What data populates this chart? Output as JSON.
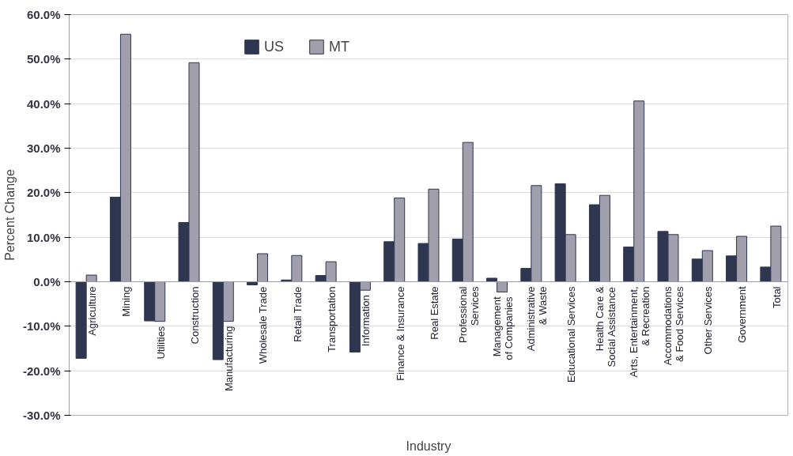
{
  "chart_data": {
    "type": "bar",
    "xlabel": "Industry",
    "ylabel": "Percent Change",
    "categories": [
      "Agriculture",
      "Mining",
      "Utilities",
      "Construction",
      "Manufacturing",
      "Wholesale Trade",
      "Retail Trade",
      "Transportation",
      "Information",
      "Finance & Insurance",
      "Real Estate",
      "Professional\nServices",
      "Management\nof Companies",
      "Administrative\n& Waste",
      "Educational Services",
      "Health Care &\nSocial Assistance",
      "Arts, Entertainment,\n& Recreation",
      "Accommodations\n& Food Services",
      "Other Services",
      "Government",
      "Total"
    ],
    "series": [
      {
        "name": "US",
        "color": "#2e3650",
        "values": [
          -17.2,
          19.0,
          -8.8,
          13.3,
          -17.5,
          -0.7,
          0.4,
          1.4,
          -15.8,
          9.0,
          8.6,
          9.6,
          0.8,
          3.0,
          22.0,
          17.3,
          7.8,
          11.3,
          5.1,
          5.8,
          3.3
        ]
      },
      {
        "name": "MT",
        "color": "#a09fab",
        "values": [
          1.5,
          55.6,
          -8.9,
          49.2,
          -8.9,
          6.3,
          5.9,
          4.5,
          -1.9,
          18.8,
          20.8,
          31.3,
          -2.3,
          21.6,
          10.6,
          19.4,
          40.6,
          10.6,
          7.0,
          10.2,
          12.5
        ]
      }
    ],
    "ylim": [
      -30,
      60
    ],
    "yticks": [
      {
        "value": -30,
        "label": "-30.0%"
      },
      {
        "value": -20,
        "label": "-20.0%"
      },
      {
        "value": -10,
        "label": "-10.0%"
      },
      {
        "value": 0,
        "label": "0.0%"
      },
      {
        "value": 10,
        "label": "10.0%"
      },
      {
        "value": 20,
        "label": "20.0%"
      },
      {
        "value": 30,
        "label": "30.0%"
      },
      {
        "value": 40,
        "label": "40.0%"
      },
      {
        "value": 50,
        "label": "50.0%"
      },
      {
        "value": 60,
        "label": "60.0%"
      }
    ],
    "grid": "y",
    "legend": "top"
  }
}
